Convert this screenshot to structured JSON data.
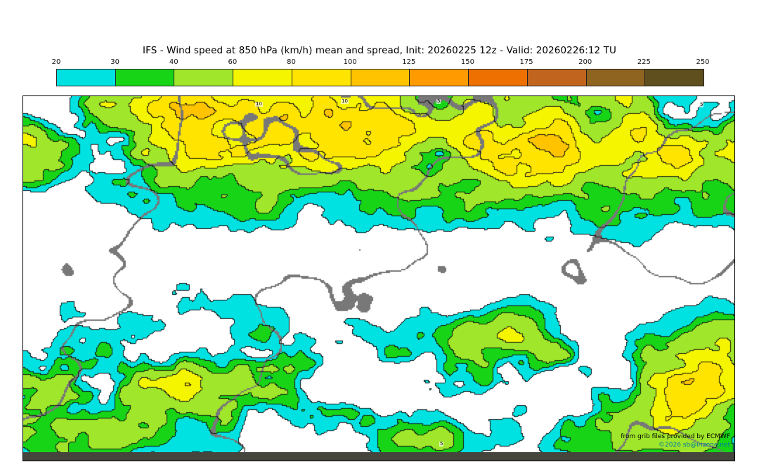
{
  "header": {
    "title": "IFS - Wind speed at 850 hPa (km/h) mean and spread, Init: 20260225 12z - Valid: 20260226:12 TU"
  },
  "colorbar": {
    "tick_labels": [
      "20",
      "30",
      "40",
      "60",
      "80",
      "100",
      "125",
      "150",
      "175",
      "200",
      "225",
      "250"
    ],
    "segment_colors": [
      "#00e2e2",
      "#17d417",
      "#a0e62a",
      "#f5f500",
      "#ffe400",
      "#ffc300",
      "#ff9a00",
      "#ed7000",
      "#c0641e",
      "#8f6420",
      "#5f4f1e"
    ]
  },
  "map": {
    "attribution_line1": "from grib files provided by ECMWF",
    "attribution_line2": "©2026 sb@irizone.net",
    "attribution2_color": "#0078a0",
    "bottom_strip_color": "#45453d"
  },
  "chart_data": {
    "type": "heatmap",
    "subtype": "global-wind-speed-filled-contour-map",
    "title": "IFS - Wind speed at 850 hPa (km/h) mean and spread",
    "model": "IFS",
    "variable": "Wind speed at 850 hPa",
    "units": "km/h",
    "init": "20260225 12z",
    "valid": "20260226:12 TU",
    "levels": [
      20,
      30,
      40,
      60,
      80,
      100,
      125,
      150,
      175,
      200,
      225,
      250
    ],
    "colors": [
      "#00e2e2",
      "#17d417",
      "#a0e62a",
      "#f5f500",
      "#ffe400",
      "#ffc300",
      "#ff9a00",
      "#ed7000",
      "#c0641e",
      "#8f6420",
      "#5f4f1e"
    ],
    "below_min_color": "#ffffff",
    "projection": "equirectangular",
    "extent": "global",
    "fields": [
      "mean wind speed (filled colors)",
      "ensemble spread (black contour lines)",
      "coastlines (thin gray lines)"
    ],
    "spread_contour_labels": [
      "5",
      "10"
    ]
  }
}
